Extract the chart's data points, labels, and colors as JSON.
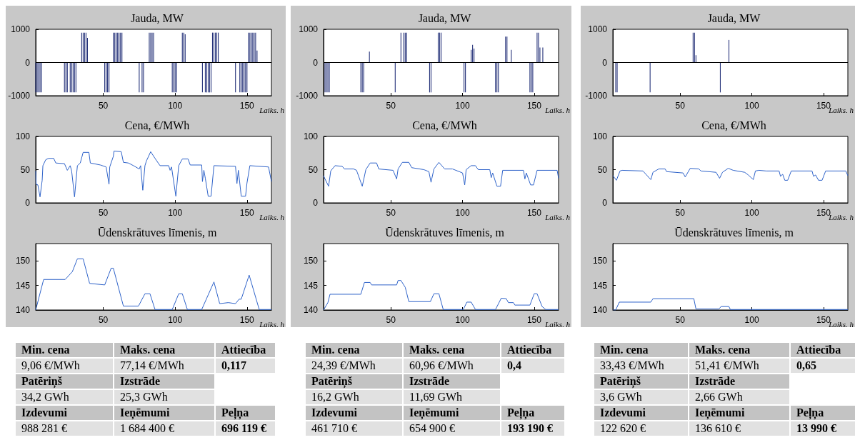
{
  "chart_data": [
    {
      "type": "bar",
      "title": "Jauda, MW",
      "xlabel": "Laiks, h",
      "color": "#26337a",
      "xlim": [
        3,
        167
      ],
      "xticks": [
        50,
        100,
        150
      ],
      "ylim": [
        -1000,
        1000
      ],
      "yticks": [
        -1000,
        0,
        1000
      ],
      "ref_lines": [
        {
          "axis": "y",
          "value": 0,
          "color": "#000000"
        }
      ],
      "x": [
        3,
        4,
        5,
        6,
        7,
        23,
        24,
        25,
        27,
        28,
        29,
        30,
        31,
        35,
        36,
        37,
        38,
        39,
        51,
        52,
        53,
        54,
        57,
        58,
        59,
        60,
        61,
        62,
        63,
        75,
        77,
        78,
        82,
        83,
        84,
        85,
        98,
        99,
        100,
        101,
        105,
        106,
        107,
        119,
        121,
        122,
        123,
        124,
        125,
        126,
        127,
        128,
        129,
        130,
        142,
        145,
        146,
        147,
        148,
        149,
        150,
        151,
        152,
        153,
        154,
        155,
        156,
        157
      ],
      "values": [
        -900,
        -900,
        -900,
        -900,
        -900,
        -900,
        -900,
        -900,
        -900,
        -900,
        -900,
        -900,
        -900,
        900,
        900,
        900,
        900,
        740,
        -900,
        -900,
        -900,
        -900,
        900,
        900,
        900,
        900,
        900,
        900,
        900,
        -900,
        -900,
        -900,
        900,
        900,
        900,
        900,
        -900,
        -900,
        -900,
        -900,
        900,
        900,
        850,
        -900,
        -900,
        -900,
        -900,
        -900,
        -900,
        900,
        900,
        900,
        900,
        900,
        -900,
        -900,
        -900,
        -900,
        -900,
        -900,
        -900,
        900,
        900,
        900,
        900,
        900,
        900,
        360
      ]
    },
    {
      "type": "bar",
      "title": "Jauda, MW",
      "xlabel": "Laiks, h",
      "color": "#26337a",
      "xlim": [
        3,
        167
      ],
      "xticks": [
        50,
        100,
        150
      ],
      "ylim": [
        -1000,
        1000
      ],
      "yticks": [
        -1000,
        0,
        1000
      ],
      "ref_lines": [
        {
          "axis": "y",
          "value": 0,
          "color": "#000000"
        }
      ],
      "x": [
        4,
        5,
        6,
        7,
        29,
        30,
        31,
        35,
        53,
        57,
        59,
        60,
        61,
        77,
        78,
        83,
        84,
        85,
        101,
        102,
        106,
        107,
        108,
        123,
        124,
        125,
        130,
        131,
        134,
        147,
        148,
        149,
        152,
        153,
        154,
        156
      ],
      "values": [
        -900,
        -900,
        -900,
        -900,
        -900,
        -900,
        -900,
        330,
        -900,
        900,
        900,
        900,
        900,
        -900,
        -900,
        900,
        900,
        900,
        -900,
        -900,
        380,
        530,
        420,
        -900,
        -900,
        -900,
        780,
        780,
        380,
        -900,
        -900,
        -900,
        900,
        900,
        450,
        450
      ]
    },
    {
      "type": "bar",
      "title": "Jauda, MW",
      "xlabel": "Laiks, h",
      "color": "#26337a",
      "xlim": [
        3,
        167
      ],
      "xticks": [
        50,
        100,
        150
      ],
      "ylim": [
        -1000,
        1000
      ],
      "yticks": [
        -1000,
        0,
        1000
      ],
      "ref_lines": [
        {
          "axis": "y",
          "value": 0,
          "color": "#000000"
        }
      ],
      "x": [
        5,
        6,
        29,
        59,
        60,
        61,
        78,
        84
      ],
      "values": [
        -900,
        -900,
        -900,
        900,
        900,
        220,
        -900,
        680
      ]
    },
    {
      "type": "line",
      "title": "Cena, €/MWh",
      "xlabel": "Laiks, h",
      "color": "#2f63c9",
      "xlim": [
        3,
        167
      ],
      "xticks": [
        50,
        100,
        150
      ],
      "ylim": [
        0,
        100
      ],
      "yticks": [
        0,
        50,
        100
      ],
      "x": [
        3,
        3.3,
        4.5,
        6,
        7.5,
        8,
        10,
        12,
        15.5,
        17,
        23,
        25,
        27,
        28,
        30,
        32,
        34,
        36,
        40,
        41,
        48,
        52,
        54,
        54.5,
        57,
        57.5,
        62.5,
        64,
        67.5,
        71,
        75,
        76,
        77.5,
        79,
        80,
        83,
        86,
        89.5,
        95.5,
        96.5,
        97.5,
        100.5,
        102.5,
        105,
        109,
        110.5,
        118.5,
        119,
        120,
        121,
        123,
        125,
        127,
        142,
        143,
        144,
        146,
        149,
        150,
        152,
        165,
        167
      ],
      "values": [
        48,
        28,
        27,
        9,
        34,
        56,
        65,
        67,
        67,
        60,
        59,
        49,
        56,
        48,
        9,
        56,
        60,
        76,
        76,
        60,
        57,
        54,
        28,
        54,
        70,
        78,
        77,
        61,
        60,
        56,
        51,
        56,
        19,
        56,
        63,
        77,
        67,
        56,
        56,
        49,
        54,
        10,
        56,
        66,
        66,
        57,
        57,
        32,
        49,
        37,
        10,
        10,
        56,
        55,
        29,
        49,
        10,
        10,
        30,
        56,
        54,
        32
      ]
    },
    {
      "type": "line",
      "title": "Cena, €/MWh",
      "xlabel": "Laiks, h",
      "color": "#2f63c9",
      "xlim": [
        3,
        167
      ],
      "xticks": [
        50,
        100,
        150
      ],
      "ylim": [
        0,
        100
      ],
      "yticks": [
        0,
        50,
        100
      ],
      "x": [
        3,
        4,
        6.5,
        8,
        11,
        16,
        17.5,
        24,
        26,
        26.5,
        30,
        32.5,
        35.5,
        40,
        41.5,
        51.5,
        54,
        55,
        58,
        62.5,
        64.5,
        73,
        76.5,
        78,
        80,
        83.5,
        87.5,
        93,
        100,
        101.5,
        102.5,
        106,
        109,
        111,
        119,
        120,
        121,
        124,
        126.5,
        128,
        142.5,
        143.5,
        144.5,
        147.5,
        149.5,
        152,
        166,
        167
      ],
      "values": [
        41,
        36,
        25,
        48,
        56,
        55,
        51,
        51,
        49,
        46,
        25,
        50,
        60,
        60,
        51,
        49,
        36,
        51,
        61,
        61,
        53,
        50,
        47,
        31,
        51,
        61,
        51,
        51,
        45,
        27,
        50,
        56,
        56,
        50,
        50,
        38,
        45,
        25,
        25,
        49,
        49,
        36,
        45,
        27,
        27,
        49,
        49,
        37
      ]
    },
    {
      "type": "line",
      "title": "Cena, €/MWh",
      "xlabel": "Laiks, h",
      "color": "#2f63c9",
      "xlim": [
        3,
        167
      ],
      "xticks": [
        50,
        100,
        150
      ],
      "ylim": [
        0,
        100
      ],
      "yticks": [
        0,
        50,
        100
      ],
      "x": [
        3,
        5.5,
        8,
        9.5,
        24,
        26.5,
        29.5,
        31,
        35,
        39.5,
        40.5,
        52,
        53.5,
        57,
        63,
        64.5,
        75,
        77.5,
        79.5,
        83.5,
        87,
        95,
        97.5,
        101,
        102.5,
        105,
        110,
        119,
        120,
        121.5,
        123,
        125,
        127.5,
        142,
        143,
        144.5,
        146.5,
        149,
        151.5,
        165.5,
        167
      ],
      "values": [
        41,
        34,
        48,
        49,
        48,
        42,
        35,
        46,
        51,
        51,
        47,
        45,
        39,
        52,
        51,
        48,
        46,
        37,
        46,
        52,
        49,
        46,
        42,
        35,
        48,
        49,
        48,
        48,
        40,
        43,
        34,
        34,
        48,
        48,
        40,
        42,
        34,
        34,
        48,
        48,
        41
      ]
    },
    {
      "type": "line",
      "title": "Ūdenskrātuves līmenis, m",
      "xlabel": "Laiks, h",
      "color": "#2f63c9",
      "xlim": [
        3,
        167
      ],
      "xticks": [
        50,
        100,
        150
      ],
      "ylim": [
        140,
        153.5
      ],
      "yticks": [
        140,
        145,
        150
      ],
      "x": [
        3,
        8.5,
        23.5,
        28.5,
        32,
        36,
        40.5,
        51,
        55.5,
        57,
        64,
        74.5,
        79,
        82.5,
        86,
        98,
        102.5,
        105,
        108.5,
        118.5,
        127,
        131,
        137,
        142,
        144.5,
        146,
        151.5,
        158.5,
        167
      ],
      "values": [
        140,
        146.2,
        146.2,
        147.8,
        150.4,
        150.4,
        145.4,
        145.1,
        148.5,
        148.5,
        140.8,
        140.8,
        143.3,
        143.3,
        140.1,
        140.1,
        143.3,
        143.3,
        140.1,
        140.1,
        145.7,
        141.3,
        141.5,
        141.3,
        142.2,
        142.2,
        147.1,
        140.1,
        140.1
      ]
    },
    {
      "type": "line",
      "title": "Ūdenskrātuves līmenis, m",
      "xlabel": "Laiks, h",
      "color": "#2f63c9",
      "xlim": [
        3,
        167
      ],
      "xticks": [
        50,
        100,
        150
      ],
      "ylim": [
        140,
        153.5
      ],
      "yticks": [
        140,
        145,
        150
      ],
      "x": [
        3,
        6,
        7.5,
        29,
        31.5,
        35.5,
        36.5,
        54,
        55,
        57,
        60,
        62.5,
        77.5,
        80,
        83.5,
        86.5,
        100.5,
        103,
        106,
        109,
        123,
        127,
        130.5,
        132,
        135.5,
        136.5,
        147,
        150,
        152,
        155.5,
        158,
        167
      ],
      "values": [
        140,
        141.5,
        143.2,
        143.2,
        145.6,
        145.6,
        145.1,
        145.1,
        146,
        146,
        144.6,
        141.7,
        141.7,
        143.3,
        143.3,
        140.1,
        140.1,
        141.6,
        141.6,
        140.1,
        140.1,
        142.4,
        142.3,
        141.5,
        141.5,
        141,
        141,
        143.3,
        143.3,
        140.7,
        140.1,
        140.1
      ]
    },
    {
      "type": "line",
      "title": "Ūdenskrātuves līmenis, m",
      "xlabel": "Laiks, h",
      "color": "#2f63c9",
      "xlim": [
        3,
        167
      ],
      "xticks": [
        50,
        100,
        150
      ],
      "ylim": [
        140,
        153.5
      ],
      "yticks": [
        140,
        145,
        150
      ],
      "x": [
        3,
        5,
        7.5,
        29.5,
        31,
        59.5,
        61,
        77,
        78.5,
        84,
        85,
        167
      ],
      "values": [
        140,
        140,
        141.6,
        141.6,
        142.3,
        142.3,
        140.2,
        140.2,
        140.7,
        140.7,
        140.1,
        140.1
      ]
    },
    {
      "type": "other",
      "annotations": [
        "Min. cena",
        "Maks. cena",
        "Attiecība",
        "9,06 €/MWh",
        "77,14 €/MWh",
        "0,117",
        "Patēriņš",
        "Izstrāde",
        "34,2 GWh",
        "25,3 GWh",
        "Izdevumi",
        "Ieņēmumi",
        "Peļņa",
        "988 281 €",
        "1 684 400 €",
        "696 119 €"
      ]
    },
    {
      "type": "other",
      "annotations": [
        "Min. cena",
        "Maks. cena",
        "Attiecība",
        "24,39 €/MWh",
        "60,96 €/MWh",
        "0,4",
        "Patēriņš",
        "Izstrāde",
        "16,2 GWh",
        "11,69 GWh",
        "Izdevumi",
        "Ieņēmumi",
        "Peļņa",
        "461 710 €",
        "654 900 €",
        "193 190 €"
      ]
    },
    {
      "type": "other",
      "annotations": [
        "Min. cena",
        "Maks. cena",
        "Attiecība",
        "33,43 €/MWh",
        "51,41 €/MWh",
        "0,65",
        "Patēriņš",
        "Izstrāde",
        "3,6 GWh",
        "2,66 GWh",
        "Izdevumi",
        "Ieņēmumi",
        "Peļņa",
        "122 620 €",
        "136 610 €",
        "13 990 €"
      ]
    }
  ]
}
